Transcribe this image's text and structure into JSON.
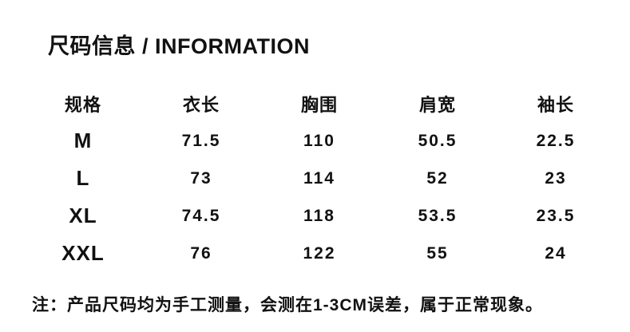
{
  "page": {
    "title": "尺码信息 / INFORMATION",
    "note": "注：产品尺码均为手工测量，会测在1-3CM误差，属于正常现象。"
  },
  "size_table": {
    "headers": [
      "规格",
      "衣长",
      "胸围",
      "肩宽",
      "袖长"
    ],
    "rows": [
      [
        "M",
        "71.5",
        "110",
        "50.5",
        "22.5"
      ],
      [
        "L",
        "73",
        "114",
        "52",
        "23"
      ],
      [
        "XL",
        "74.5",
        "118",
        "53.5",
        "23.5"
      ],
      [
        "XXL",
        "76",
        "122",
        "55",
        "24"
      ]
    ]
  },
  "colors": {
    "text": "#111111",
    "background": "#ffffff"
  }
}
